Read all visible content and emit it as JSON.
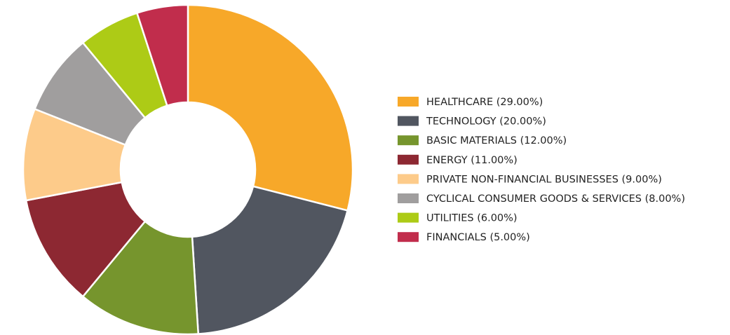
{
  "chart_data": {
    "type": "donut",
    "categories": [
      "HEALTHCARE (29.00%)",
      "TECHNOLOGY (20.00%)",
      "BASIC MATERIALS (12.00%)",
      "ENERGY (11.00%)",
      "PRIVATE NON-FINANCIAL BUSINESSES (9.00%)",
      "CYCLICAL CONSUMER GOODS & SERVICES (8.00%)",
      "UTILITIES (6.00%)",
      "FINANCIALS (5.00%)"
    ],
    "values": [
      29,
      20,
      12,
      11,
      9,
      8,
      6,
      5
    ],
    "colors": [
      "#f7a829",
      "#515660",
      "#76952d",
      "#8d2832",
      "#fdcb8a",
      "#a09e9e",
      "#adcb16",
      "#c12d4c"
    ],
    "legend": "right"
  }
}
